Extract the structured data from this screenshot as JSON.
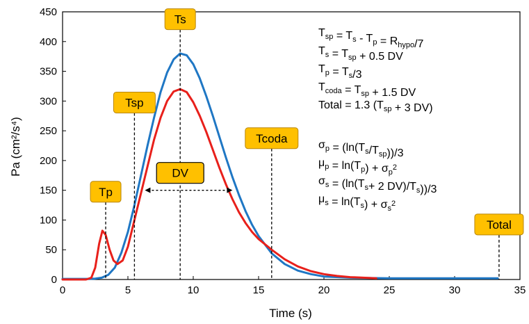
{
  "chart_data": {
    "type": "line",
    "xlabel": "Time (s)",
    "ylabel": "Pa (cm²/s⁴)",
    "xlim": [
      0,
      35
    ],
    "ylim": [
      0,
      450
    ],
    "x_ticks": [
      "0",
      "5",
      "10",
      "15",
      "20",
      "25",
      "30",
      "35"
    ],
    "y_ticks": [
      "0",
      "50",
      "100",
      "150",
      "200",
      "250",
      "300",
      "350",
      "400",
      "450"
    ],
    "grid": false,
    "series": [
      {
        "color": "#1f77c4",
        "points": [
          [
            0,
            1
          ],
          [
            2,
            1
          ],
          [
            2.5,
            1.5
          ],
          [
            3,
            3
          ],
          [
            3.5,
            8
          ],
          [
            4,
            20
          ],
          [
            4.5,
            45
          ],
          [
            5,
            80
          ],
          [
            5.5,
            125
          ],
          [
            6,
            175
          ],
          [
            6.5,
            225
          ],
          [
            7,
            272
          ],
          [
            7.5,
            315
          ],
          [
            8,
            348
          ],
          [
            8.5,
            370
          ],
          [
            9,
            380
          ],
          [
            9.5,
            377
          ],
          [
            10,
            362
          ],
          [
            10.5,
            338
          ],
          [
            11,
            308
          ],
          [
            11.5,
            275
          ],
          [
            12,
            240
          ],
          [
            12.5,
            205
          ],
          [
            13,
            172
          ],
          [
            13.5,
            142
          ],
          [
            14,
            115
          ],
          [
            14.5,
            92
          ],
          [
            15,
            73
          ],
          [
            16,
            44
          ],
          [
            17,
            26
          ],
          [
            18,
            15
          ],
          [
            19,
            9
          ],
          [
            20,
            5
          ],
          [
            22,
            3
          ],
          [
            25,
            2
          ],
          [
            30,
            2
          ],
          [
            33.3,
            2
          ]
        ]
      },
      {
        "color": "#e8201b",
        "points": [
          [
            0,
            0
          ],
          [
            1.8,
            0
          ],
          [
            2.2,
            3
          ],
          [
            2.5,
            20
          ],
          [
            2.8,
            60
          ],
          [
            3.05,
            82
          ],
          [
            3.3,
            75
          ],
          [
            3.6,
            50
          ],
          [
            3.9,
            32
          ],
          [
            4.2,
            26
          ],
          [
            4.6,
            32
          ],
          [
            5,
            55
          ],
          [
            5.5,
            100
          ],
          [
            6,
            145
          ],
          [
            6.5,
            190
          ],
          [
            7,
            235
          ],
          [
            7.5,
            272
          ],
          [
            8,
            300
          ],
          [
            8.5,
            316
          ],
          [
            9,
            320
          ],
          [
            9.5,
            315
          ],
          [
            10,
            298
          ],
          [
            10.5,
            275
          ],
          [
            11,
            248
          ],
          [
            11.5,
            218
          ],
          [
            12,
            188
          ],
          [
            12.5,
            160
          ],
          [
            13,
            135
          ],
          [
            13.5,
            113
          ],
          [
            14,
            95
          ],
          [
            14.5,
            80
          ],
          [
            15,
            68
          ],
          [
            16,
            50
          ],
          [
            17,
            34
          ],
          [
            18,
            22
          ],
          [
            19,
            14
          ],
          [
            20,
            9
          ],
          [
            21,
            6
          ],
          [
            22,
            4
          ],
          [
            23,
            3
          ],
          [
            24,
            2
          ]
        ]
      }
    ],
    "markers": [
      {
        "label": "Tp",
        "x": 3.3,
        "y_top": 130
      },
      {
        "label": "Tsp",
        "x": 5.5,
        "y_top": 280
      },
      {
        "label": "Ts",
        "x": 9,
        "y_top": 420
      },
      {
        "label": "Tcoda",
        "x": 16,
        "y_top": 220
      },
      {
        "label": "Total",
        "x": 33.4,
        "y_top": 75
      }
    ],
    "dv_span": {
      "label": "DV",
      "x1": 6.3,
      "x2": 13,
      "y": 150
    },
    "equations_block_1": [
      {
        "parts": [
          [
            "T",
            ""
          ],
          [
            "sp",
            "sub"
          ],
          [
            " = T",
            ""
          ],
          [
            "s",
            "sub"
          ],
          [
            " - T",
            ""
          ],
          [
            "p",
            "sub"
          ],
          [
            " = R",
            ""
          ],
          [
            "hypo",
            "sub"
          ],
          [
            "/7",
            ""
          ]
        ]
      },
      {
        "parts": [
          [
            "T",
            ""
          ],
          [
            "s",
            "sub"
          ],
          [
            " = T",
            ""
          ],
          [
            "sp",
            "sub"
          ],
          [
            " + 0.5 DV",
            ""
          ]
        ]
      },
      {
        "parts": [
          [
            "T",
            ""
          ],
          [
            "p",
            "sub"
          ],
          [
            " = T",
            ""
          ],
          [
            "s",
            "sub"
          ],
          [
            "/3",
            ""
          ]
        ]
      },
      {
        "parts": [
          [
            "T",
            ""
          ],
          [
            "coda",
            "sub"
          ],
          [
            " = T",
            ""
          ],
          [
            "sp",
            "sub"
          ],
          [
            " + 1.5 DV",
            ""
          ]
        ]
      },
      {
        "parts": [
          [
            "Total = 1.3 (T",
            ""
          ],
          [
            "sp",
            "sub"
          ],
          [
            " + 3 DV)",
            ""
          ]
        ]
      }
    ],
    "equations_block_2": [
      {
        "parts": [
          [
            "σ",
            ""
          ],
          [
            "p",
            "sub"
          ],
          [
            " = (ln(T",
            ""
          ],
          [
            "s",
            "sub"
          ],
          [
            "/T",
            ""
          ],
          [
            "sp",
            "sub"
          ],
          [
            "))/3",
            ""
          ]
        ]
      },
      {
        "parts": [
          [
            "μ",
            ""
          ],
          [
            "p",
            "sub"
          ],
          [
            " = ln(T",
            ""
          ],
          [
            "p",
            "sub"
          ],
          [
            ") + σ",
            ""
          ],
          [
            "p",
            "sub"
          ],
          [
            "2",
            "sup"
          ]
        ]
      },
      {
        "parts": [
          [
            "σ",
            ""
          ],
          [
            "s",
            "sub"
          ],
          [
            " = (ln(T",
            ""
          ],
          [
            "s",
            "sub"
          ],
          [
            "+ 2 DV)/T",
            ""
          ],
          [
            "s",
            "sub"
          ],
          [
            "))/3",
            ""
          ]
        ]
      },
      {
        "parts": [
          [
            "μ",
            ""
          ],
          [
            "s",
            "sub"
          ],
          [
            " = ln(T",
            ""
          ],
          [
            "s",
            "sub"
          ],
          [
            ") + σ",
            ""
          ],
          [
            "s",
            "sub"
          ],
          [
            "2",
            "sup"
          ]
        ]
      }
    ]
  },
  "colors": {
    "box_fill": "#ffc000",
    "box_stroke": "#b8860b",
    "axis": "#000000"
  }
}
